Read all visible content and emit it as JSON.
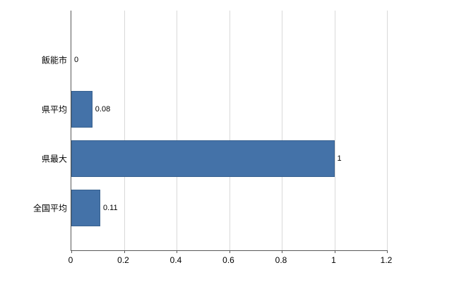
{
  "chart_data": {
    "type": "bar",
    "orientation": "horizontal",
    "title": "",
    "xlabel": "",
    "ylabel": "",
    "categories": [
      "飯能市",
      "県平均",
      "県最大",
      "全国平均"
    ],
    "values": [
      0,
      0.08,
      1,
      0.11
    ],
    "value_labels": [
      "0",
      "0.08",
      "1",
      "0.11"
    ],
    "xlim": [
      0,
      1.2
    ],
    "x_ticks": [
      0,
      0.2,
      0.4,
      0.6,
      0.8,
      1.0,
      1.2
    ],
    "x_tick_labels": [
      "0",
      "0.2",
      "0.4",
      "0.6",
      "0.8",
      "1",
      "1.2"
    ],
    "grid": true,
    "legend": "none",
    "bar_color": "#4472a8",
    "bar_border_color": "#38618f",
    "grid_color": "#d9d9d9",
    "axis_color": "#595959"
  }
}
